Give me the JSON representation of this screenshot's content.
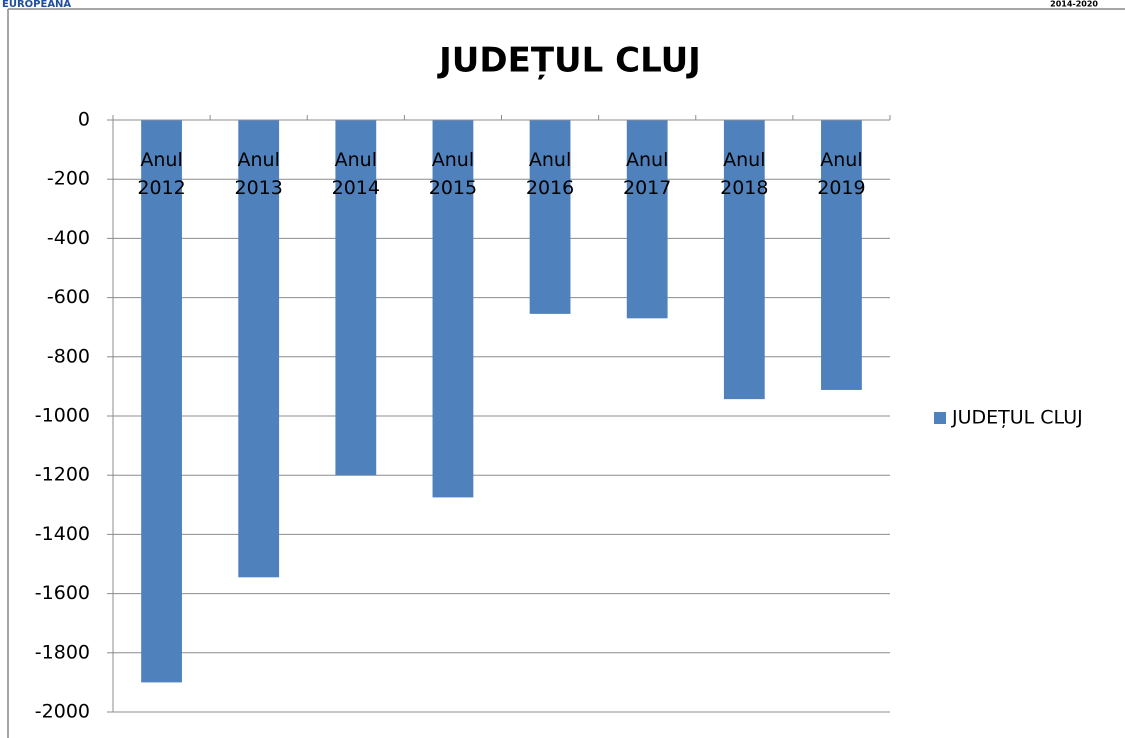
{
  "header": {
    "left": "EUROPEANA",
    "right": "2014-2020"
  },
  "chart_data": {
    "type": "bar",
    "title": "JUDEȚUL CLUJ",
    "categories": [
      "Anul 2012",
      "Anul 2013",
      "Anul 2014",
      "Anul 2015",
      "Anul 2016",
      "Anul 2017",
      "Anul 2018",
      "Anul 2019"
    ],
    "series": [
      {
        "name": "JUDEȚUL CLUJ",
        "color": "#4f81bd",
        "values": [
          -1900,
          -1545,
          -1200,
          -1275,
          -655,
          -670,
          -943,
          -912
        ]
      }
    ],
    "ylim": [
      -2000,
      0
    ],
    "yticks": [
      0,
      -200,
      -400,
      -600,
      -800,
      -1000,
      -1200,
      -1400,
      -1600,
      -1800,
      -2000
    ],
    "grid": true,
    "legend": "right"
  }
}
